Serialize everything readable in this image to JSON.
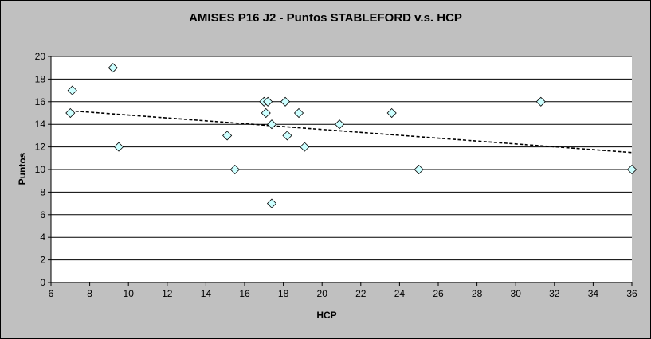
{
  "chart_data": {
    "type": "scatter",
    "title": "AMISES P16 J2 - Puntos STABLEFORD v.s. HCP",
    "xlabel": "HCP",
    "ylabel": "Puntos",
    "xlim": [
      6,
      36
    ],
    "ylim": [
      0,
      20
    ],
    "x_ticks": [
      6,
      8,
      10,
      12,
      14,
      16,
      18,
      20,
      22,
      24,
      26,
      28,
      30,
      32,
      34,
      36
    ],
    "y_ticks": [
      0,
      2,
      4,
      6,
      8,
      10,
      12,
      14,
      16,
      18,
      20
    ],
    "grid": "horizontal",
    "legend": "none",
    "series": [
      {
        "marker": "diamond",
        "color": "#ccffff",
        "points": [
          {
            "x": 7.0,
            "y": 15
          },
          {
            "x": 7.1,
            "y": 17
          },
          {
            "x": 9.2,
            "y": 19
          },
          {
            "x": 9.5,
            "y": 12
          },
          {
            "x": 15.1,
            "y": 13
          },
          {
            "x": 15.5,
            "y": 10
          },
          {
            "x": 17.0,
            "y": 16
          },
          {
            "x": 17.1,
            "y": 15
          },
          {
            "x": 17.2,
            "y": 16
          },
          {
            "x": 17.4,
            "y": 14
          },
          {
            "x": 17.4,
            "y": 7
          },
          {
            "x": 18.1,
            "y": 16
          },
          {
            "x": 18.2,
            "y": 13
          },
          {
            "x": 18.8,
            "y": 15
          },
          {
            "x": 19.1,
            "y": 12
          },
          {
            "x": 20.9,
            "y": 14
          },
          {
            "x": 23.6,
            "y": 15
          },
          {
            "x": 25.0,
            "y": 10
          },
          {
            "x": 31.3,
            "y": 16
          },
          {
            "x": 36.0,
            "y": 10
          }
        ]
      }
    ],
    "trendline": {
      "type": "linear",
      "style": "dashed",
      "from": {
        "x": 7.0,
        "y": 15.2
      },
      "to": {
        "x": 36.0,
        "y": 11.5
      }
    }
  }
}
